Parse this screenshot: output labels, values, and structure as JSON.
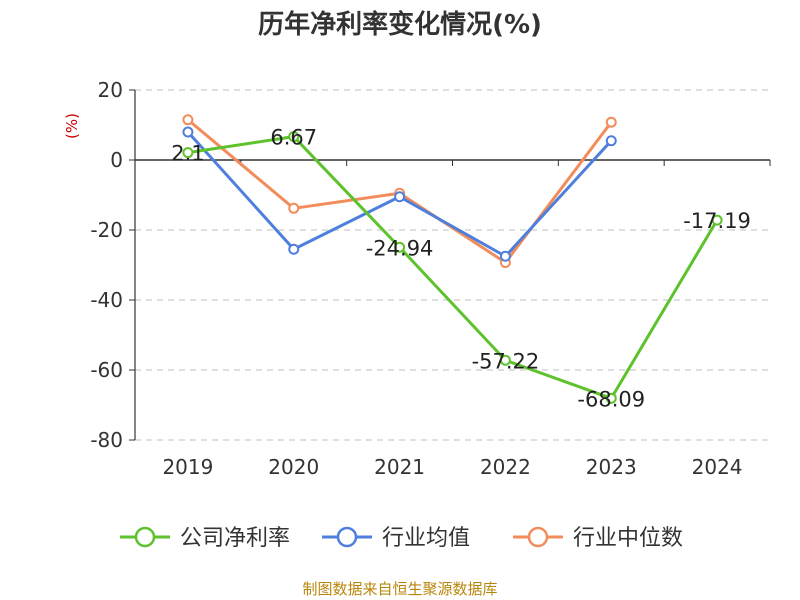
{
  "chart_data": {
    "type": "line",
    "title": "历年净利率变化情况(%)",
    "ylabel": "(%)",
    "categories": [
      "2019",
      "2020",
      "2021",
      "2022",
      "2023",
      "2024"
    ],
    "ylim": [
      -80,
      20
    ],
    "yticks": [
      20,
      0,
      -20,
      -40,
      -60,
      -80
    ],
    "grid": true,
    "legend_position": "bottom",
    "series": [
      {
        "name": "公司净利率",
        "color": "#5dc22b",
        "values": [
          2.1,
          6.67,
          -24.94,
          -57.22,
          -68.09,
          -17.19
        ],
        "labels": [
          "2.1",
          "6.67",
          "-24.94",
          "-57.22",
          "-68.09",
          "-17.19"
        ]
      },
      {
        "name": "行业均值",
        "color": "#4f7fdc",
        "values": [
          8.0,
          -25.5,
          -10.5,
          -27.5,
          5.5,
          null
        ]
      },
      {
        "name": "行业中位数",
        "color": "#f28c5a",
        "values": [
          11.5,
          -13.8,
          -9.5,
          -29.3,
          10.8,
          null
        ]
      }
    ]
  },
  "footer": {
    "source": "制图数据来自恒生聚源数据库"
  }
}
